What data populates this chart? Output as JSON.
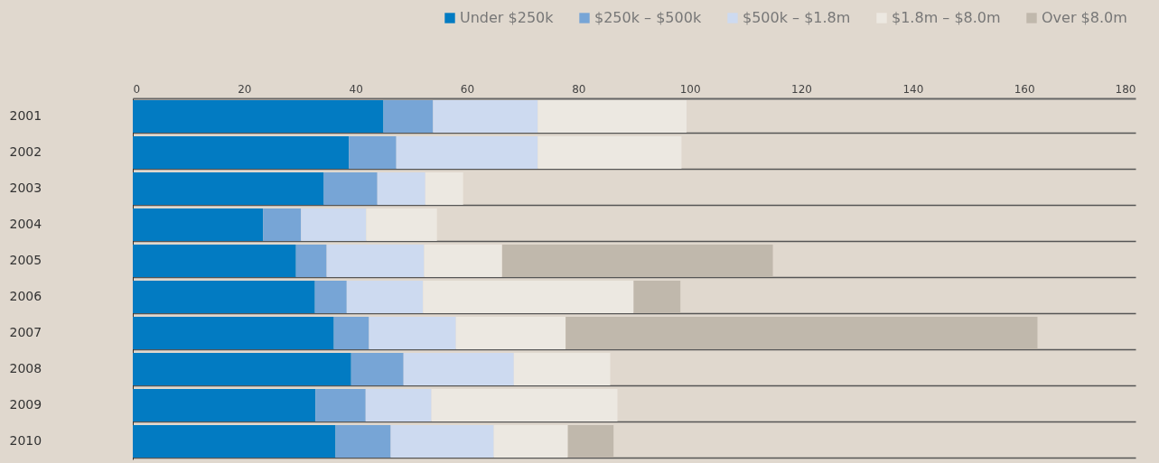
{
  "chart_data": {
    "type": "bar",
    "orientation": "horizontal",
    "stacked": true,
    "categories": [
      "2001",
      "2002",
      "2003",
      "2004",
      "2005",
      "2006",
      "2007",
      "2008",
      "2009",
      "2010"
    ],
    "series": [
      {
        "name": "Under $250k",
        "color": "#027bc2",
        "values": [
          45.0,
          38.8,
          34.3,
          23.4,
          29.3,
          32.7,
          36.1,
          39.2,
          32.8,
          36.4
        ]
      },
      {
        "name": "$250k – $500k",
        "color": "#77a5d6",
        "values": [
          8.9,
          8.5,
          9.6,
          6.8,
          5.5,
          5.7,
          6.3,
          9.4,
          9.0,
          9.9
        ]
      },
      {
        "name": "$500k – $1.8m",
        "color": "#cddaf0",
        "values": [
          18.8,
          25.4,
          8.6,
          11.7,
          17.5,
          13.7,
          15.6,
          19.8,
          11.8,
          18.5
        ]
      },
      {
        "name": "$1.8m – $8.0m",
        "color": "#ece8e1",
        "values": [
          26.7,
          25.8,
          6.8,
          12.7,
          14.0,
          37.8,
          19.7,
          17.3,
          33.4,
          13.3
        ]
      },
      {
        "name": "Over $8.0m",
        "color": "#c0b8ac",
        "values": [
          0,
          0,
          0,
          0,
          48.6,
          8.4,
          84.7,
          0,
          0,
          8.2
        ]
      }
    ],
    "xlim": [
      0,
      180
    ],
    "xticks": [
      0,
      20,
      40,
      60,
      80,
      100,
      120,
      140,
      160,
      180
    ],
    "grid": "y",
    "legend": "top right"
  }
}
